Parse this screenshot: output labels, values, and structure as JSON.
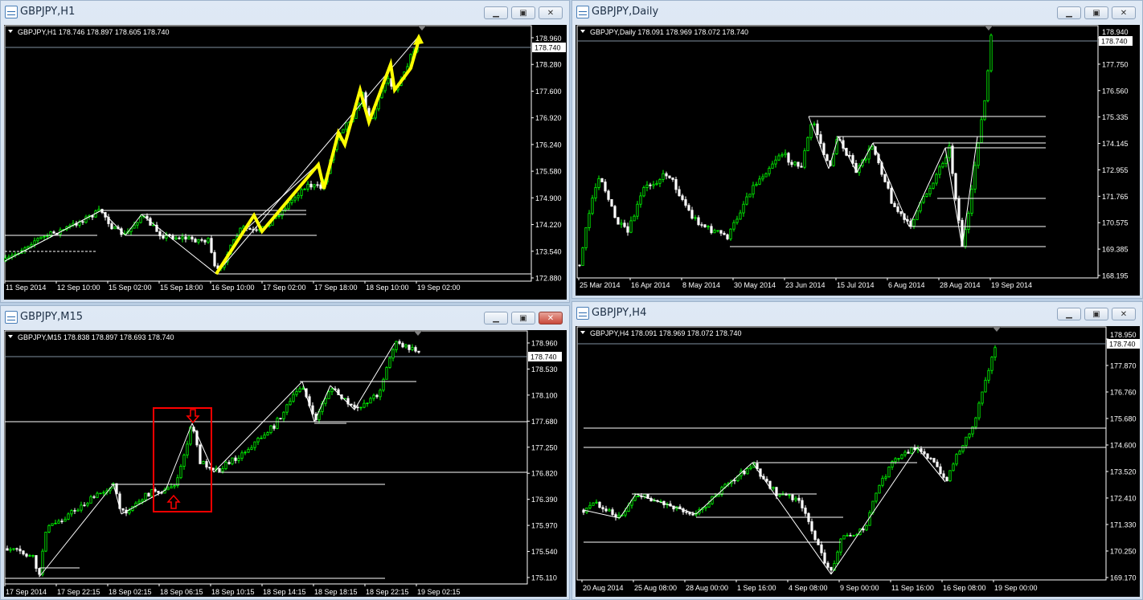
{
  "windows": {
    "h1": {
      "title": "GBPJPY,H1",
      "header": "GBPJPY,H1  178.746 178.897 178.605 178.740",
      "current_price": "178.740",
      "y_ticks": [
        "178.960",
        "178.280",
        "177.600",
        "176.920",
        "176.240",
        "175.580",
        "174.900",
        "174.220",
        "173.540",
        "172.880"
      ],
      "x_ticks": [
        "11 Sep 2014",
        "12 Sep 10:00",
        "15 Sep 02:00",
        "15 Sep 18:00",
        "16 Sep 10:00",
        "17 Sep 02:00",
        "17 Sep 18:00",
        "18 Sep 10:00",
        "19 Sep 02:00"
      ],
      "active": false
    },
    "daily": {
      "title": "GBPJPY,Daily",
      "header": "GBPJPY,Daily  178.091 178.969 178.072 178.740",
      "current_price": "178.740",
      "y_ticks": [
        "178.940",
        "177.750",
        "176.560",
        "175.335",
        "174.145",
        "172.955",
        "171.765",
        "170.575",
        "169.385",
        "168.195"
      ],
      "x_ticks": [
        "25 Mar 2014",
        "16 Apr 2014",
        "8 May 2014",
        "30 May 2014",
        "23 Jun 2014",
        "15 Jul 2014",
        "6 Aug 2014",
        "28 Aug 2014",
        "19 Sep 2014"
      ],
      "active": false
    },
    "m15": {
      "title": "GBPJPY,M15",
      "header": "GBPJPY,M15  178.838 178.897 178.693 178.740",
      "current_price": "178.740",
      "y_ticks": [
        "178.960",
        "178.530",
        "178.100",
        "177.680",
        "177.250",
        "176.820",
        "176.390",
        "175.970",
        "175.540",
        "175.110"
      ],
      "x_ticks": [
        "17 Sep 2014",
        "17 Sep 22:15",
        "18 Sep 02:15",
        "18 Sep 06:15",
        "18 Sep 10:15",
        "18 Sep 14:15",
        "18 Sep 18:15",
        "18 Sep 22:15",
        "19 Sep 02:15"
      ],
      "active": true
    },
    "h4": {
      "title": "GBPJPY,H4",
      "header": "GBPJPY,H4  178.091 178.969 178.072 178.740",
      "current_price": "178.740",
      "y_ticks": [
        "178.950",
        "177.870",
        "176.760",
        "175.680",
        "174.600",
        "173.520",
        "172.410",
        "171.330",
        "170.250",
        "169.170"
      ],
      "x_ticks": [
        "20 Aug 2014",
        "25 Aug 08:00",
        "28 Aug 00:00",
        "1 Sep 16:00",
        "4 Sep 08:00",
        "9 Sep 00:00",
        "11 Sep 16:00",
        "16 Sep 08:00",
        "19 Sep 00:00"
      ],
      "active": false
    }
  },
  "window_buttons": {
    "minimize": "▁",
    "maximize": "▣",
    "close": "✕"
  },
  "colors": {
    "bull_candle": "#00ff00",
    "bear_candle": "#ffffff",
    "trend_highlight": "#ffff00",
    "annotation_box": "#ff0000",
    "background": "#000000"
  },
  "chart_data": [
    {
      "type": "candlestick",
      "symbol": "GBPJPY",
      "timeframe": "H1",
      "ylim": [
        172.88,
        178.96
      ],
      "last": 178.74
    },
    {
      "type": "candlestick",
      "symbol": "GBPJPY",
      "timeframe": "Daily",
      "ylim": [
        168.195,
        178.94
      ],
      "last": 178.74
    },
    {
      "type": "candlestick",
      "symbol": "GBPJPY",
      "timeframe": "M15",
      "ylim": [
        175.11,
        178.96
      ],
      "last": 178.74
    },
    {
      "type": "candlestick",
      "symbol": "GBPJPY",
      "timeframe": "H4",
      "ylim": [
        169.17,
        178.95
      ],
      "last": 178.74
    }
  ]
}
